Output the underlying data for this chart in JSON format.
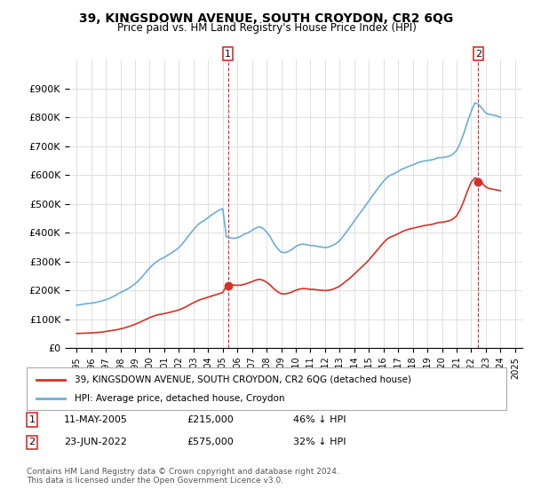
{
  "title": "39, KINGSDOWN AVENUE, SOUTH CROYDON, CR2 6QG",
  "subtitle": "Price paid vs. HM Land Registry's House Price Index (HPI)",
  "hpi_color": "#6baed6",
  "price_color": "#d73027",
  "marker_color": "#d73027",
  "background_color": "#ffffff",
  "grid_color": "#e0e0e0",
  "ylim": [
    0,
    1000000
  ],
  "yticks": [
    0,
    100000,
    200000,
    300000,
    400000,
    500000,
    600000,
    700000,
    800000,
    900000
  ],
  "ytick_labels": [
    "£0",
    "£100K",
    "£200K",
    "£300K",
    "£400K",
    "£500K",
    "£600K",
    "£700K",
    "£800K",
    "£900K"
  ],
  "purchase1_year": 2005.36,
  "purchase1_price": 215000,
  "purchase1_label": "1",
  "purchase2_year": 2022.48,
  "purchase2_price": 575000,
  "purchase2_label": "2",
  "legend_line1": "39, KINGSDOWN AVENUE, SOUTH CROYDON, CR2 6QG (detached house)",
  "legend_line2": "HPI: Average price, detached house, Croydon",
  "note1_label": "1",
  "note1_text": "11-MAY-2005",
  "note1_price": "£215,000",
  "note1_hpi": "46% ↓ HPI",
  "note2_label": "2",
  "note2_text": "23-JUN-2022",
  "note2_price": "£575,000",
  "note2_hpi": "32% ↓ HPI",
  "footer": "Contains HM Land Registry data © Crown copyright and database right 2024.\nThis data is licensed under the Open Government Licence v3.0.",
  "hpi_years": [
    1995.0,
    1995.25,
    1995.5,
    1995.75,
    1996.0,
    1996.25,
    1996.5,
    1996.75,
    1997.0,
    1997.25,
    1997.5,
    1997.75,
    1998.0,
    1998.25,
    1998.5,
    1998.75,
    1999.0,
    1999.25,
    1999.5,
    1999.75,
    2000.0,
    2000.25,
    2000.5,
    2000.75,
    2001.0,
    2001.25,
    2001.5,
    2001.75,
    2002.0,
    2002.25,
    2002.5,
    2002.75,
    2003.0,
    2003.25,
    2003.5,
    2003.75,
    2004.0,
    2004.25,
    2004.5,
    2004.75,
    2005.0,
    2005.25,
    2005.5,
    2005.75,
    2006.0,
    2006.25,
    2006.5,
    2006.75,
    2007.0,
    2007.25,
    2007.5,
    2007.75,
    2008.0,
    2008.25,
    2008.5,
    2008.75,
    2009.0,
    2009.25,
    2009.5,
    2009.75,
    2010.0,
    2010.25,
    2010.5,
    2010.75,
    2011.0,
    2011.25,
    2011.5,
    2011.75,
    2012.0,
    2012.25,
    2012.5,
    2012.75,
    2013.0,
    2013.25,
    2013.5,
    2013.75,
    2014.0,
    2014.25,
    2014.5,
    2014.75,
    2015.0,
    2015.25,
    2015.5,
    2015.75,
    2016.0,
    2016.25,
    2016.5,
    2016.75,
    2017.0,
    2017.25,
    2017.5,
    2017.75,
    2018.0,
    2018.25,
    2018.5,
    2018.75,
    2019.0,
    2019.25,
    2019.5,
    2019.75,
    2020.0,
    2020.25,
    2020.5,
    2020.75,
    2021.0,
    2021.25,
    2021.5,
    2021.75,
    2022.0,
    2022.25,
    2022.5,
    2022.75,
    2023.0,
    2023.25,
    2023.5,
    2023.75,
    2024.0
  ],
  "hpi_values": [
    148000,
    150000,
    152000,
    154000,
    155000,
    157000,
    160000,
    163000,
    167000,
    172000,
    178000,
    185000,
    192000,
    198000,
    205000,
    213000,
    222000,
    234000,
    248000,
    263000,
    278000,
    290000,
    300000,
    308000,
    314000,
    322000,
    330000,
    338000,
    348000,
    362000,
    378000,
    395000,
    410000,
    425000,
    435000,
    442000,
    452000,
    462000,
    470000,
    478000,
    483000,
    385000,
    382000,
    380000,
    382000,
    388000,
    395000,
    400000,
    408000,
    416000,
    420000,
    415000,
    402000,
    385000,
    362000,
    345000,
    332000,
    330000,
    335000,
    342000,
    352000,
    358000,
    360000,
    358000,
    355000,
    355000,
    352000,
    350000,
    348000,
    350000,
    355000,
    362000,
    372000,
    388000,
    405000,
    422000,
    440000,
    458000,
    475000,
    492000,
    510000,
    528000,
    545000,
    562000,
    578000,
    592000,
    600000,
    605000,
    612000,
    620000,
    625000,
    630000,
    635000,
    640000,
    645000,
    648000,
    650000,
    652000,
    655000,
    660000,
    660000,
    662000,
    665000,
    672000,
    685000,
    710000,
    745000,
    785000,
    820000,
    850000,
    845000,
    830000,
    815000,
    810000,
    808000,
    805000,
    800000
  ],
  "price_years": [
    1995.0,
    1995.25,
    1995.5,
    1995.75,
    1996.0,
    1996.25,
    1996.5,
    1996.75,
    1997.0,
    1997.25,
    1997.5,
    1997.75,
    1998.0,
    1998.25,
    1998.5,
    1998.75,
    1999.0,
    1999.25,
    1999.5,
    1999.75,
    2000.0,
    2000.25,
    2000.5,
    2000.75,
    2001.0,
    2001.25,
    2001.5,
    2001.75,
    2002.0,
    2002.25,
    2002.5,
    2002.75,
    2003.0,
    2003.25,
    2003.5,
    2003.75,
    2004.0,
    2004.25,
    2004.5,
    2004.75,
    2005.0,
    2005.25,
    2005.5,
    2005.75,
    2006.0,
    2006.25,
    2006.5,
    2006.75,
    2007.0,
    2007.25,
    2007.5,
    2007.75,
    2008.0,
    2008.25,
    2008.5,
    2008.75,
    2009.0,
    2009.25,
    2009.5,
    2009.75,
    2010.0,
    2010.25,
    2010.5,
    2010.75,
    2011.0,
    2011.25,
    2011.5,
    2011.75,
    2012.0,
    2012.25,
    2012.5,
    2012.75,
    2013.0,
    2013.25,
    2013.5,
    2013.75,
    2014.0,
    2014.25,
    2014.5,
    2014.75,
    2015.0,
    2015.25,
    2015.5,
    2015.75,
    2016.0,
    2016.25,
    2016.5,
    2016.75,
    2017.0,
    2017.25,
    2017.5,
    2017.75,
    2018.0,
    2018.25,
    2018.5,
    2018.75,
    2019.0,
    2019.25,
    2019.5,
    2019.75,
    2020.0,
    2020.25,
    2020.5,
    2020.75,
    2021.0,
    2021.25,
    2021.5,
    2021.75,
    2022.0,
    2022.25,
    2022.5,
    2022.75,
    2023.0,
    2023.25,
    2023.5,
    2023.75,
    2024.0
  ],
  "price_values": [
    50000,
    50500,
    51000,
    51500,
    52000,
    53000,
    54000,
    55000,
    57000,
    59000,
    61000,
    63000,
    66000,
    69000,
    73000,
    77000,
    82000,
    87000,
    93000,
    99000,
    105000,
    110000,
    114000,
    117000,
    119000,
    122000,
    125000,
    128000,
    132000,
    137000,
    143000,
    150000,
    157000,
    163000,
    168000,
    172000,
    176000,
    180000,
    184000,
    188000,
    192000,
    215000,
    220000,
    218000,
    217000,
    218000,
    221000,
    225000,
    230000,
    235000,
    238000,
    235000,
    228000,
    218000,
    205000,
    195000,
    188000,
    187000,
    190000,
    194000,
    200000,
    204000,
    206000,
    205000,
    203000,
    203000,
    201000,
    200000,
    199000,
    200000,
    203000,
    208000,
    214000,
    224000,
    234000,
    244000,
    256000,
    268000,
    280000,
    292000,
    305000,
    320000,
    335000,
    350000,
    365000,
    378000,
    385000,
    390000,
    396000,
    403000,
    408000,
    412000,
    415000,
    418000,
    421000,
    424000,
    426000,
    428000,
    431000,
    435000,
    436000,
    438000,
    441000,
    447000,
    458000,
    480000,
    510000,
    545000,
    575000,
    590000,
    585000,
    572000,
    558000,
    553000,
    550000,
    548000,
    545000
  ]
}
